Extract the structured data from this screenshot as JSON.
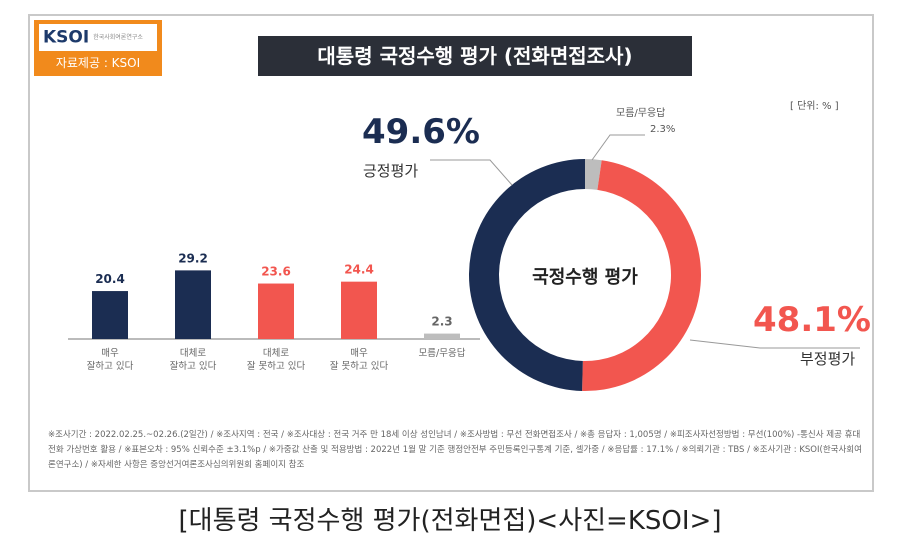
{
  "logo": {
    "brand": "KSOI",
    "subtitle": "한국사회여론연구소",
    "credit": "자료제공 : KSOI",
    "color": "#f18a1c"
  },
  "title": "대통령 국정수행 평가 (전화면접조사)",
  "unit": "[ 단위: % ]",
  "colors": {
    "positive": "#1b2d52",
    "negative": "#f2564f",
    "unknown": "#bdbdbd"
  },
  "chart_data": [
    {
      "type": "bar",
      "categories": [
        "매우\n잘하고 있다",
        "대체로\n잘하고 있다",
        "대체로\n잘 못하고 있다",
        "매우\n잘 못하고 있다",
        "모름/무응답"
      ],
      "values": [
        20.4,
        29.2,
        23.6,
        24.4,
        2.3
      ],
      "data_labels": [
        "20.4",
        "29.2",
        "23.6",
        "24.4",
        "2.3"
      ]
    },
    {
      "type": "pie",
      "donut": true,
      "center_label": "국정수행 평가",
      "slices": [
        {
          "name": "긍정평가",
          "value": 49.6,
          "label": "49.6%"
        },
        {
          "name": "부정평가",
          "value": 48.1,
          "label": "48.1%"
        },
        {
          "name": "모름/무응답",
          "value": 2.3,
          "label": "2.3%"
        }
      ]
    }
  ],
  "footnote": "※조사기간 : 2022.02.25.~02.26.(2일간) / ※조사지역 : 전국 / ※조사대상 : 전국 거주 만 18세 이상 성인남녀 / ※조사방법 : 무선 전화면접조사 / ※총 응답자 : 1,005명 / ※피조사자선정방법 : 무선(100%) -통신사 제공 휴대전화 가상번호 활용 / ※표본오차 : 95% 신뢰수준 ±3.1%p / ※가중값 산출 및 적용방법 : 2022년 1월 말 기준 행정안전부 주민등록인구통계 기준, 셀가중 / ※응답률 : 17.1% / ※의뢰기관 : TBS / ※조사기관 : KSOI(한국사회여론연구소) / ※자세한 사항은 중앙선거여론조사심의위원회 홈페이지 참조",
  "caption": "[대통령 국정수행 평가(전화면접)<사진=KSOI>]"
}
